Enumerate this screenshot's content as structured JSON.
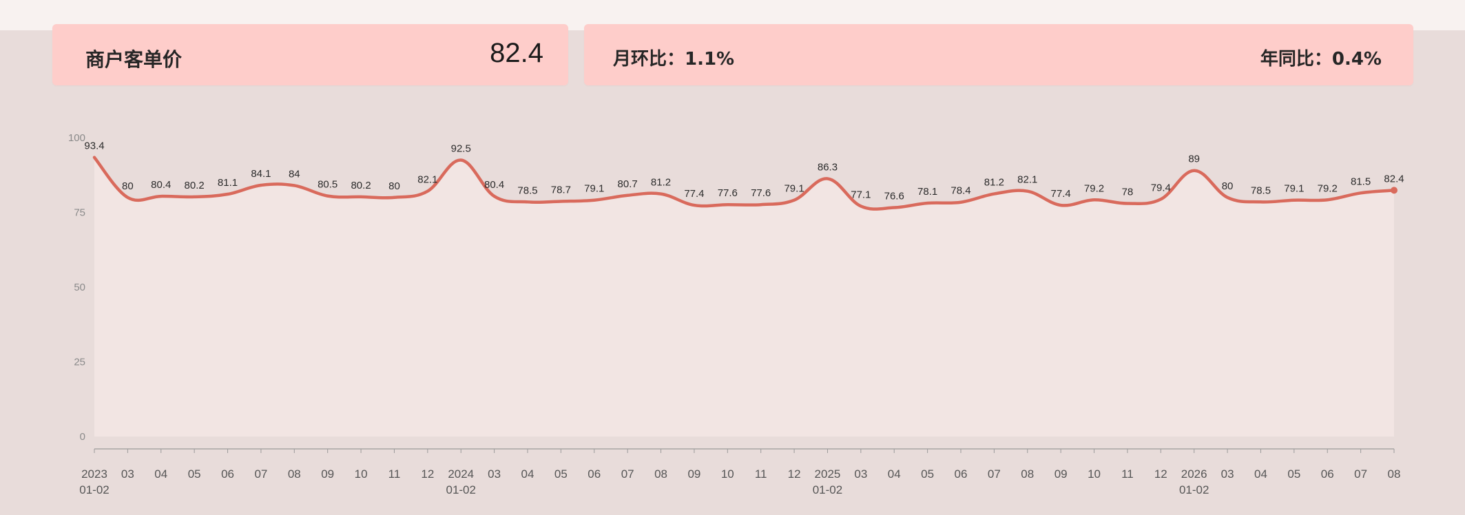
{
  "kpi": {
    "label": "商户客单价",
    "value": "82.4",
    "mom": "月环比：1.1%",
    "yoy": "年同比：0.4%"
  },
  "colors": {
    "line": "#d96a5c",
    "area": "#f6e8e5",
    "card": "#fecdca"
  },
  "chart_data": {
    "type": "line",
    "ylim": [
      0,
      100
    ],
    "y_ticks": [
      "0",
      "25",
      "50",
      "75",
      "100"
    ],
    "grid": false,
    "legend": "none",
    "x_ticks": [
      [
        "2023",
        "01-02"
      ],
      [
        "03"
      ],
      [
        "04"
      ],
      [
        "05"
      ],
      [
        "06"
      ],
      [
        "07"
      ],
      [
        "08"
      ],
      [
        "09"
      ],
      [
        "10"
      ],
      [
        "11"
      ],
      [
        "12"
      ],
      [
        "2024",
        "01-02"
      ],
      [
        "03"
      ],
      [
        "04"
      ],
      [
        "05"
      ],
      [
        "06"
      ],
      [
        "07"
      ],
      [
        "08"
      ],
      [
        "09"
      ],
      [
        "10"
      ],
      [
        "11"
      ],
      [
        "12"
      ],
      [
        "2025",
        "01-02"
      ],
      [
        "03"
      ],
      [
        "04"
      ],
      [
        "05"
      ],
      [
        "06"
      ],
      [
        "07"
      ],
      [
        "08"
      ],
      [
        "09"
      ],
      [
        "10"
      ],
      [
        "11"
      ],
      [
        "12"
      ],
      [
        "2026",
        "01-02"
      ],
      [
        "03"
      ],
      [
        "04"
      ],
      [
        "05"
      ],
      [
        "06"
      ],
      [
        "07"
      ],
      [
        "08"
      ]
    ],
    "values": [
      93.4,
      80,
      80.4,
      80.2,
      81.1,
      84.1,
      84,
      80.5,
      80.2,
      80,
      82.1,
      92.5,
      80.4,
      78.5,
      78.7,
      79.1,
      80.7,
      81.2,
      77.4,
      77.6,
      77.6,
      79.1,
      86.3,
      77.1,
      76.6,
      78.1,
      78.4,
      81.2,
      82.1,
      77.4,
      79.2,
      78,
      79.4,
      89,
      80,
      78.5,
      79.1,
      79.2,
      81.5,
      82.4
    ],
    "labels": [
      "93.4",
      "80",
      "80.4",
      "80.2",
      "81.1",
      "84.1",
      "84",
      "80.5",
      "80.2",
      "80",
      "82.1",
      "92.5",
      "80.4",
      "78.5",
      "78.7",
      "79.1",
      "80.7",
      "81.2",
      "77.4",
      "77.6",
      "77.6",
      "79.1",
      "86.3",
      "77.1",
      "76.6",
      "78.1",
      "78.4",
      "81.2",
      "82.1",
      "77.4",
      "79.2",
      "78",
      "79.4",
      "89",
      "80",
      "78.5",
      "79.1",
      "79.2",
      "81.5",
      "82.4"
    ]
  }
}
